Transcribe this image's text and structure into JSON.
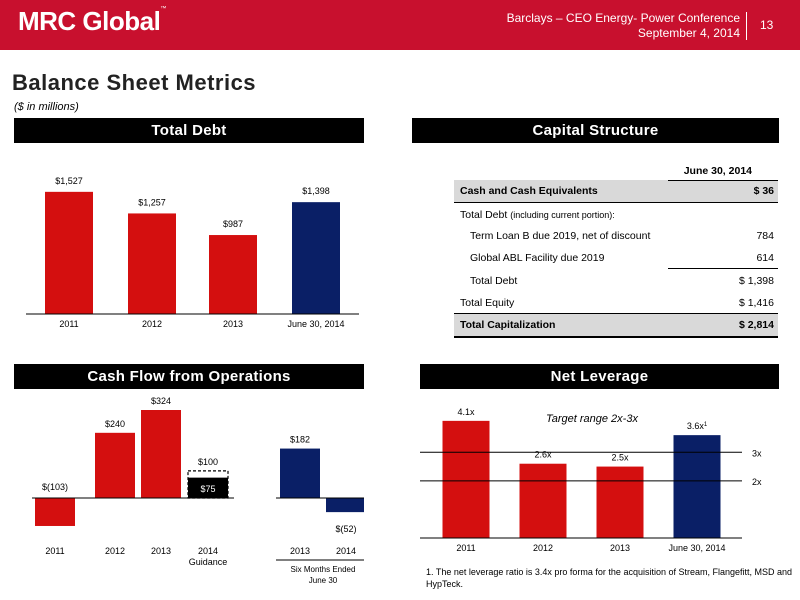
{
  "header": {
    "logo_text": "MRC Global",
    "logo_mark": "™",
    "conference": "Barclays – CEO Energy- Power Conference",
    "date": "September 4, 2014",
    "page_number": "13",
    "bar_color": "#c8102e"
  },
  "page": {
    "title": "Balance Sheet Metrics",
    "units": "($ in millions)"
  },
  "sections": {
    "total_debt": "Total Debt",
    "capital_structure": "Capital Structure",
    "cash_flow": "Cash Flow from Operations",
    "net_leverage": "Net Leverage"
  },
  "capital_structure": {
    "column_header": "June 30, 2014",
    "rows": [
      {
        "label": "Cash and Cash Equivalents",
        "value": "$ 36"
      },
      {
        "label": "Total Debt",
        "sublabel": "(including current portion):",
        "value": ""
      },
      {
        "label": "Term Loan B due 2019, net of discount",
        "value": "784"
      },
      {
        "label": "Global ABL Facility due 2019",
        "value": "614"
      },
      {
        "label": "Total Debt",
        "value": "$ 1,398"
      },
      {
        "label": "Total Equity",
        "value": "$ 1,416"
      },
      {
        "label": "Total Capitalization",
        "value": "$ 2,814"
      }
    ]
  },
  "footnote": "1. The net leverage ratio is 3.4x pro forma for the acquisition of Stream, Flangefitt, MSD and HypTeck.",
  "chart_data": [
    {
      "type": "bar",
      "categories": [
        "2011",
        "2012",
        "2013",
        "June 30, 2014"
      ],
      "values": [
        1527,
        1257,
        987,
        1398
      ],
      "labels": [
        "$1,527",
        "$1,257",
        "$987",
        "$1,398"
      ],
      "colors": [
        "#d40f0f",
        "#d40f0f",
        "#d40f0f",
        "#0a1f66"
      ],
      "ylim": [
        0,
        1700
      ]
    },
    {
      "type": "bar",
      "categories": [
        "2011",
        "2012",
        "2013",
        "2014",
        "2013",
        "2014"
      ],
      "category_sublabels": [
        "",
        "",
        "",
        "Guidance",
        "",
        ""
      ],
      "group_label": "Six Months Ended June 30",
      "values": [
        -103,
        240,
        324,
        75,
        182,
        -52
      ],
      "labels": [
        "$(103)",
        "$240",
        "$324",
        "$75",
        "$182",
        "$(52)"
      ],
      "colors": [
        "#d40f0f",
        "#d40f0f",
        "#d40f0f",
        "#000000",
        "#0a1f66",
        "#0a1f66"
      ],
      "guidance_high": 100,
      "guidance_high_label": "$100",
      "ylim": [
        -120,
        340
      ]
    },
    {
      "type": "bar",
      "categories": [
        "2011",
        "2012",
        "2013",
        "June 30, 2014"
      ],
      "values": [
        4.1,
        2.6,
        2.5,
        3.6
      ],
      "labels": [
        "4.1x",
        "2.6x",
        "2.5x",
        "3.6x"
      ],
      "label_superscripts": [
        "",
        "",
        "",
        "1"
      ],
      "colors": [
        "#d40f0f",
        "#d40f0f",
        "#d40f0f",
        "#0a1f66"
      ],
      "reference_lines": [
        {
          "value": 3,
          "label": "3x"
        },
        {
          "value": 2,
          "label": "2x"
        }
      ],
      "annotation": "Target range 2x-3x",
      "ylim": [
        0,
        4.2
      ]
    }
  ]
}
